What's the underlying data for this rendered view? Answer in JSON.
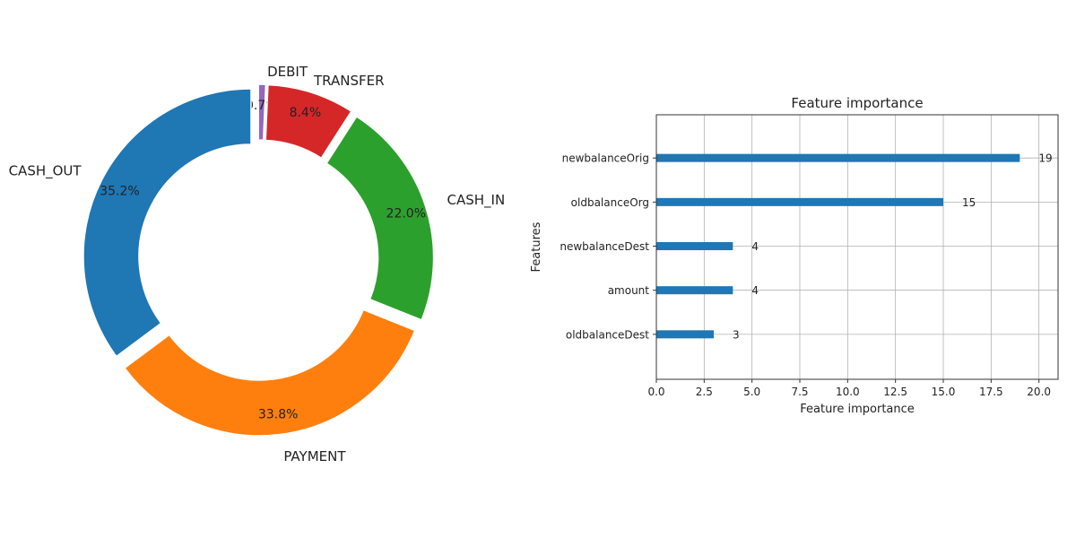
{
  "chart_data": [
    {
      "type": "pie",
      "donut": true,
      "slices": [
        {
          "label": "DEBIT",
          "value": 0.7,
          "pct_label": "0.7%",
          "color": "#9467bd"
        },
        {
          "label": "TRANSFER",
          "value": 8.4,
          "pct_label": "8.4%",
          "color": "#d62728"
        },
        {
          "label": "CASH_IN",
          "value": 22.0,
          "pct_label": "22.0%",
          "color": "#2ca02c"
        },
        {
          "label": "PAYMENT",
          "value": 33.8,
          "pct_label": "33.8%",
          "color": "#ff7f0e"
        },
        {
          "label": "CASH_OUT",
          "value": 35.2,
          "pct_label": "35.2%",
          "color": "#1f77b4"
        }
      ]
    },
    {
      "type": "bar",
      "orientation": "horizontal",
      "title": "Feature importance",
      "xlabel": "Feature importance",
      "ylabel": "Features",
      "categories": [
        "newbalanceOrig",
        "oldbalanceOrg",
        "newbalanceDest",
        "amount",
        "oldbalanceDest"
      ],
      "values": [
        19,
        15,
        4,
        4,
        3
      ],
      "xlim": [
        0,
        21
      ],
      "xticks": [
        "0.0",
        "2.5",
        "5.0",
        "7.5",
        "10.0",
        "12.5",
        "15.0",
        "17.5",
        "20.0"
      ],
      "grid": true,
      "color": "#1f77b4"
    }
  ]
}
